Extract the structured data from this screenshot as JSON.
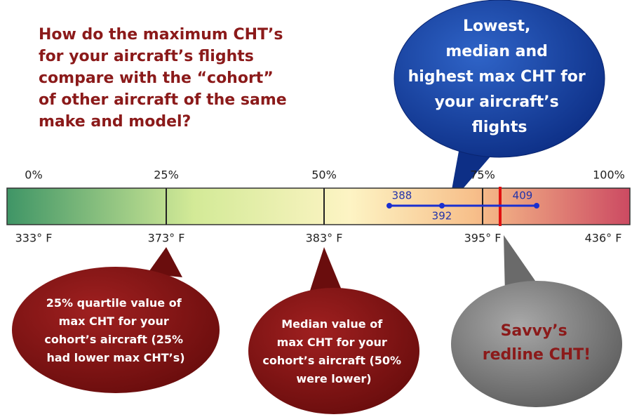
{
  "title": {
    "lines": [
      "How do the maximum CHT’s",
      "for your aircraft’s flights",
      "compare with the “cohort”",
      "of other aircraft of the same",
      "make and model?"
    ]
  },
  "aircraft_callout": {
    "lines": [
      "Lowest,",
      "median and",
      "highest max CHT for",
      "your aircraft’s",
      "flights"
    ]
  },
  "percent_labels": [
    "0%",
    "25%",
    "50%",
    "75%",
    "100%"
  ],
  "temperature_labels": [
    "333° F",
    "373° F",
    "383° F",
    "395° F",
    "436° F"
  ],
  "aircraft_range": {
    "low": "388",
    "median": "392",
    "high": "409"
  },
  "quartile_callout": {
    "lines": [
      "25% quartile value of",
      "max CHT for your",
      "cohort’s aircraft (25%",
      "had lower max CHT’s)"
    ]
  },
  "median_callout": {
    "lines": [
      "Median value of",
      "max CHT for your",
      "cohort’s aircraft (50%",
      "were lower)"
    ]
  },
  "redline_callout": {
    "lines": [
      "Savvy’s",
      "redline CHT!"
    ]
  }
}
